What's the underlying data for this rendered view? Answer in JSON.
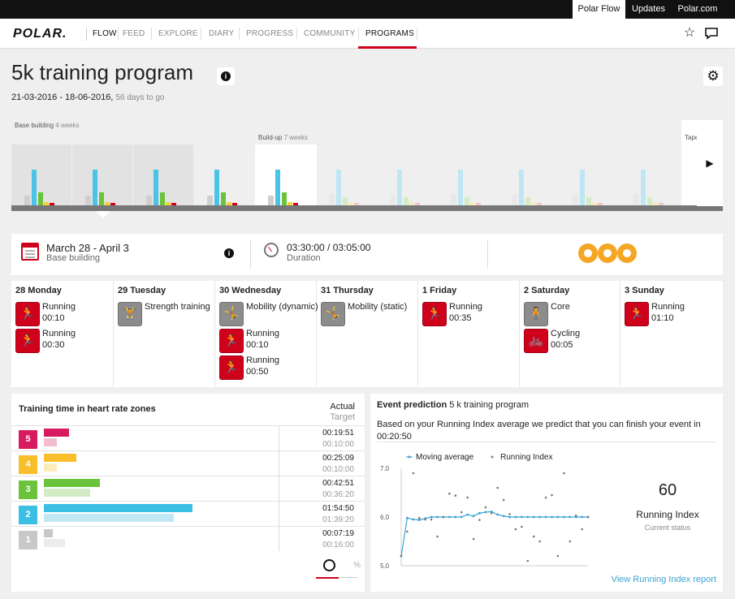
{
  "topbar": {
    "links": [
      "Polar Flow",
      "Updates",
      "Polar.com"
    ]
  },
  "nav": {
    "logo": "POLAR.",
    "items": [
      "FLOW",
      "FEED",
      "EXPLORE",
      "DIARY",
      "PROGRESS",
      "COMMUNITY",
      "PROGRAMS"
    ],
    "active": "PROGRAMS"
  },
  "header": {
    "title": "5k training program",
    "date_range": "21-03-2016 - 18-06-2016,",
    "days_to_go": "56 days to go"
  },
  "timeline": {
    "phases": [
      {
        "name": "Base building",
        "weeks": "4 weeks"
      },
      {
        "name": "Build-up",
        "weeks": "7 weeks"
      },
      {
        "name": "Tape",
        "weeks": ""
      }
    ],
    "colors": {
      "grey": "#cfcfcf",
      "blue": "#4bc3e6",
      "green": "#6ac33a",
      "yellow": "#f5d23a",
      "red": "#d0021b",
      "grey_future": "#e9e9e9",
      "blue_future": "#bfe6f3",
      "green_future": "#d4ecc4",
      "yellow_future": "#f7ecbd",
      "red_future": "#f0c5cb"
    }
  },
  "summary": {
    "range": "March 28 - April 3",
    "phase": "Base building",
    "duration_value": "03:30:00 / 03:05:00",
    "duration_label": "Duration",
    "stars": 3
  },
  "days": [
    {
      "header": "28 Monday",
      "activities": [
        {
          "name": "Running",
          "time": "00:10",
          "icon": "running-icon",
          "color": "red"
        },
        {
          "name": "Running",
          "time": "00:30",
          "icon": "running-icon",
          "color": "red"
        }
      ]
    },
    {
      "header": "29 Tuesday",
      "activities": [
        {
          "name": "Strength training",
          "time": "",
          "icon": "strength-icon",
          "color": "grey"
        }
      ]
    },
    {
      "header": "30 Wednesday",
      "activities": [
        {
          "name": "Mobility (dynamic)",
          "time": "",
          "icon": "mobility-icon",
          "color": "grey"
        },
        {
          "name": "Running",
          "time": "00:10",
          "icon": "running-icon",
          "color": "red"
        },
        {
          "name": "Running",
          "time": "00:50",
          "icon": "running-icon",
          "color": "red"
        }
      ]
    },
    {
      "header": "31 Thursday",
      "activities": [
        {
          "name": "Mobility (static)",
          "time": "",
          "icon": "mobility-icon",
          "color": "grey"
        }
      ]
    },
    {
      "header": "1   Friday",
      "activities": [
        {
          "name": "Running",
          "time": "00:35",
          "icon": "running-icon",
          "color": "red"
        }
      ]
    },
    {
      "header": "2   Saturday",
      "activities": [
        {
          "name": "Core",
          "time": "",
          "icon": "core-icon",
          "color": "grey"
        },
        {
          "name": "Cycling",
          "time": "00:05",
          "icon": "cycling-icon",
          "color": "red"
        }
      ]
    },
    {
      "header": "3   Sunday",
      "activities": [
        {
          "name": "Running",
          "time": "01:10",
          "icon": "running-icon",
          "color": "red"
        }
      ]
    }
  ],
  "zones": {
    "title": "Training time in heart rate zones",
    "actual_label": "Actual",
    "target_label": "Target",
    "pct_label": "%",
    "rows": [
      {
        "zone": "5",
        "actual": "00:19:51",
        "target": "00:10:00",
        "actual_frac": 0.11,
        "target_frac": 0.055,
        "color": "#d81b60",
        "light": "#f3bcd0"
      },
      {
        "zone": "4",
        "actual": "00:25:09",
        "target": "00:10:00",
        "actual_frac": 0.14,
        "target_frac": 0.055,
        "color": "#f9bf2b",
        "light": "#fbedb9"
      },
      {
        "zone": "3",
        "actual": "00:42:51",
        "target": "00:36:20",
        "actual_frac": 0.24,
        "target_frac": 0.2,
        "color": "#6ac33a",
        "light": "#d4ecc4"
      },
      {
        "zone": "2",
        "actual": "01:54:50",
        "target": "01:39:20",
        "actual_frac": 0.64,
        "target_frac": 0.56,
        "color": "#3cbfe4",
        "light": "#c3e8f5"
      },
      {
        "zone": "1",
        "actual": "00:07:19",
        "target": "00:16:00",
        "actual_frac": 0.04,
        "target_frac": 0.09,
        "color": "#c8c8c8",
        "light": "#ececec"
      }
    ]
  },
  "event": {
    "title": "Event prediction",
    "program": "5 k training program",
    "text": "Based on your Running Index average we predict that you can finish your event in 00:20:50",
    "value": "60",
    "label": "Running Index",
    "sub": "Current status",
    "link": "View Running Index report"
  },
  "chart_data": {
    "type": "scatter",
    "legend": [
      "Moving average",
      "Running Index"
    ],
    "legend_position": "top",
    "yticks": [
      "7.0",
      "6.0",
      "5.0"
    ],
    "ylim": [
      50,
      70
    ],
    "moving_average": [
      52,
      59.8,
      59.5,
      59.4,
      59.7,
      60,
      60,
      60,
      60,
      60,
      60,
      60.5,
      60.2,
      60.8,
      61,
      61.1,
      60.5,
      60.2,
      60,
      60,
      60,
      60,
      60,
      60,
      60,
      60,
      60,
      60,
      60,
      60,
      60,
      60
    ],
    "running_index": [
      52,
      57,
      69,
      59.8,
      59.5,
      59.5,
      56,
      60,
      64.8,
      64.4,
      61,
      64,
      55.5,
      59.4,
      62,
      60.8,
      66,
      63.5,
      60.6,
      57.5,
      58,
      51,
      56,
      55,
      64,
      64.5,
      52,
      69,
      55,
      60.3,
      57.5,
      60
    ]
  }
}
